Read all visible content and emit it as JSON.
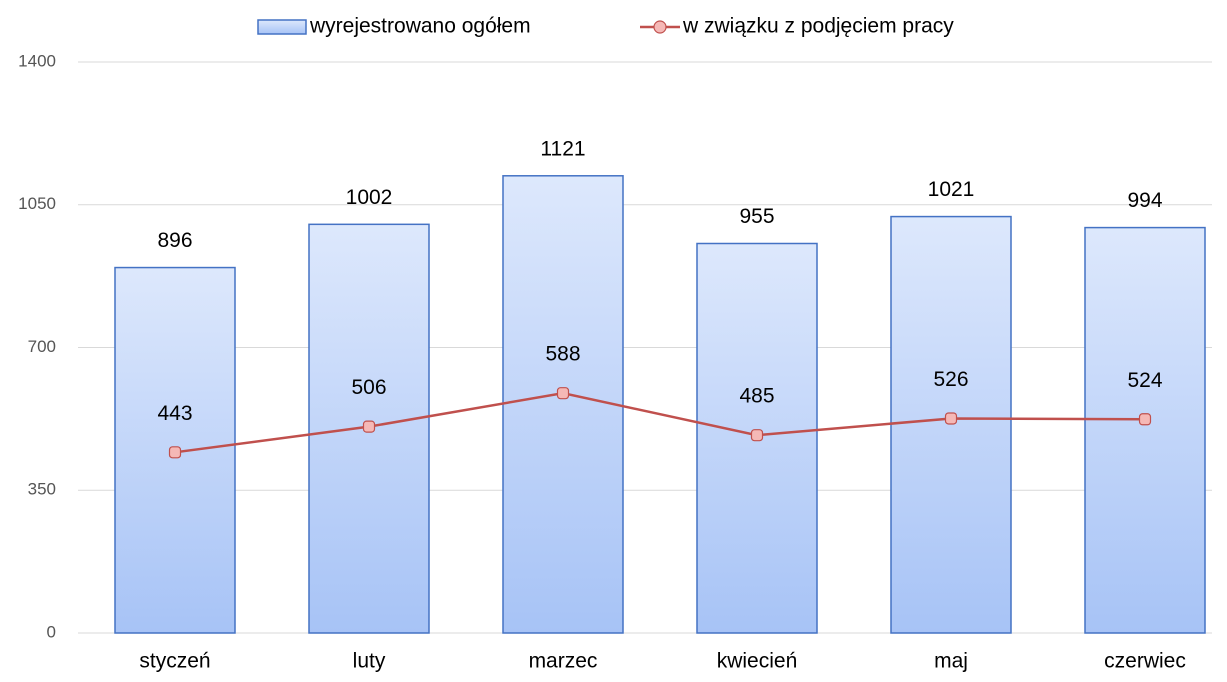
{
  "chart_data": {
    "type": "bar",
    "categories": [
      "styczeń",
      "luty",
      "marzec",
      "kwiecień",
      "maj",
      "czerwiec"
    ],
    "series": [
      {
        "name": "wyrejestrowano ogółem",
        "type": "bar",
        "color": "#4472c4",
        "values": [
          896,
          1002,
          1121,
          955,
          1021,
          994
        ]
      },
      {
        "name": "w związku z podjęciem pracy",
        "type": "line",
        "color": "#c0504d",
        "values": [
          443,
          506,
          588,
          485,
          526,
          524
        ]
      }
    ],
    "ylim": [
      0,
      1400
    ],
    "yticks": [
      0,
      350,
      700,
      1050,
      1400
    ],
    "grid": true,
    "legend": "top"
  }
}
